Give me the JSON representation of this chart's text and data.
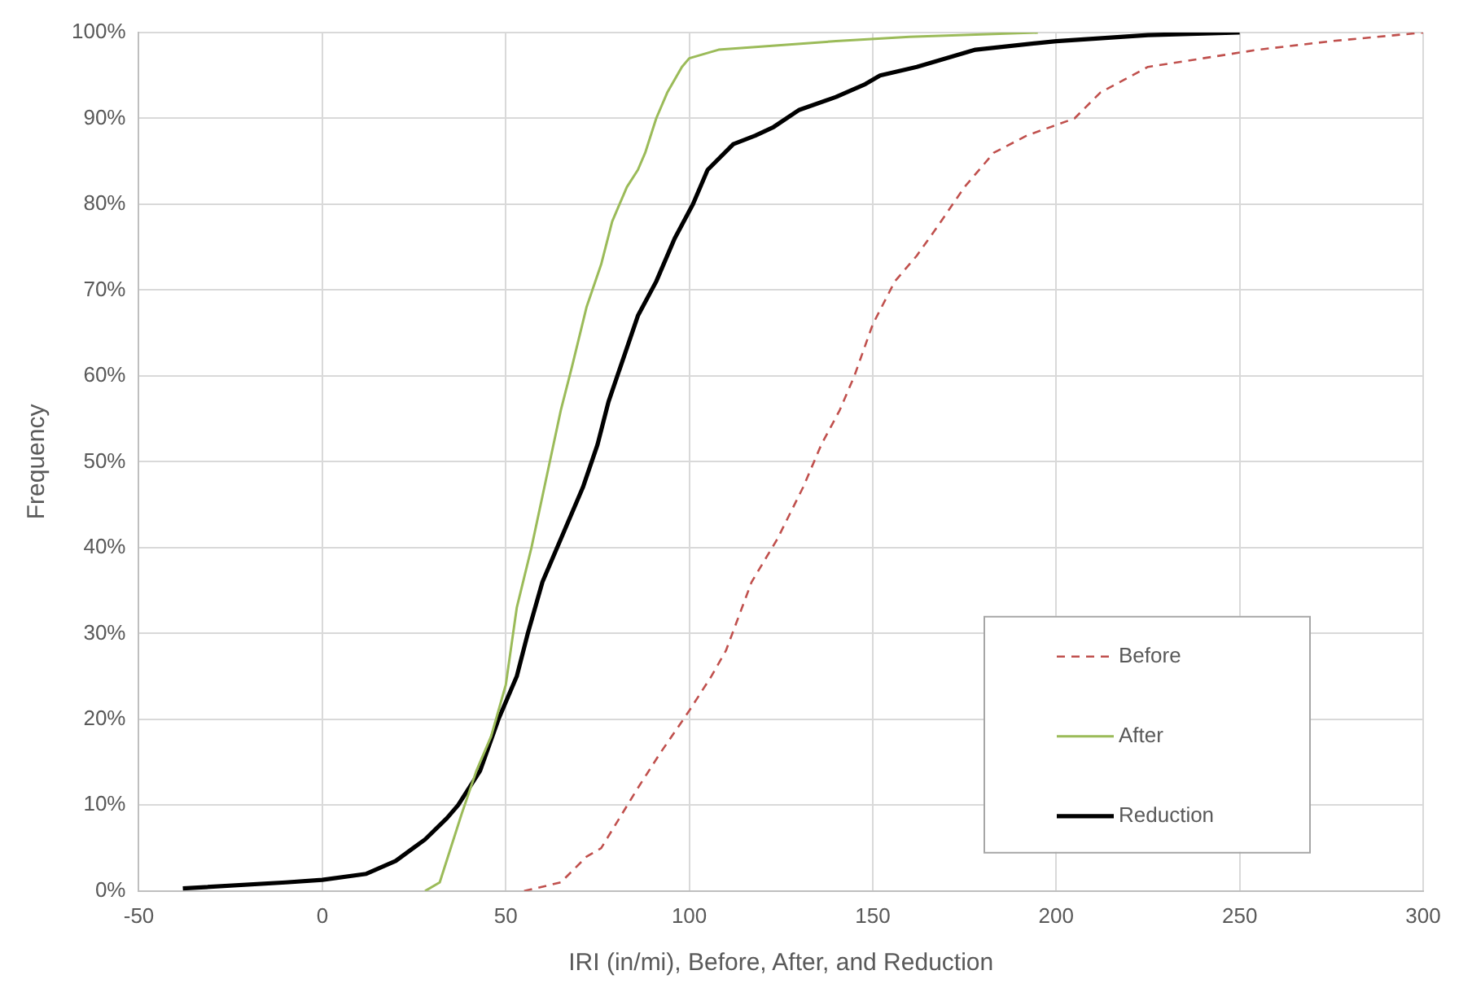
{
  "chart_data": {
    "type": "line",
    "xlabel": "IRI (in/mi), Before, After, and Reduction",
    "ylabel": "Frequency",
    "xlim": [
      -50,
      300
    ],
    "xticks": [
      -50,
      0,
      50,
      100,
      150,
      200,
      250,
      300
    ],
    "ylim": [
      0,
      100
    ],
    "yticks": [
      {
        "value": 0,
        "label": "0%"
      },
      {
        "value": 10,
        "label": "10%"
      },
      {
        "value": 20,
        "label": "20%"
      },
      {
        "value": 30,
        "label": "30%"
      },
      {
        "value": 40,
        "label": "40%"
      },
      {
        "value": 50,
        "label": "50%"
      },
      {
        "value": 60,
        "label": "60%"
      },
      {
        "value": 70,
        "label": "70%"
      },
      {
        "value": 80,
        "label": "80%"
      },
      {
        "value": 90,
        "label": "90%"
      },
      {
        "value": 100,
        "label": "100%"
      }
    ],
    "grid": true,
    "legend": "bottom right",
    "marker": "none",
    "series": [
      {
        "name": "Before",
        "color": "#c0504d",
        "line_style": "dashed",
        "x": [
          55,
          65,
          72,
          76,
          86,
          92,
          100,
          106,
          110,
          117,
          124,
          131,
          136,
          141,
          145,
          150,
          156,
          162,
          167,
          175,
          183,
          192,
          205,
          212,
          225,
          240,
          255,
          275,
          300
        ],
        "values": [
          0,
          1,
          4,
          5,
          12,
          16,
          21,
          25,
          28,
          36,
          41,
          47,
          52,
          56,
          60,
          66,
          71,
          74,
          77,
          82,
          86,
          88,
          90,
          93,
          96,
          97,
          98,
          99,
          100
        ]
      },
      {
        "name": "After",
        "color": "#9bbb59",
        "line_style": "solid",
        "x": [
          28,
          32,
          35,
          38,
          42,
          46,
          50,
          53,
          57,
          61,
          65,
          68,
          72,
          76,
          79,
          83,
          86,
          88,
          91,
          94,
          98,
          100,
          108,
          140,
          160,
          195
        ],
        "values": [
          0,
          1,
          5,
          9,
          14,
          18,
          24,
          33,
          40,
          48,
          56,
          61,
          68,
          73,
          78,
          82,
          84,
          86,
          90,
          93,
          96,
          97,
          98,
          99,
          99.5,
          100
        ]
      },
      {
        "name": "Reduction",
        "color": "#000000",
        "line_style": "solid",
        "x": [
          -38,
          -10,
          0,
          12,
          20,
          28,
          34,
          37,
          43,
          48,
          53,
          56,
          60,
          66,
          71,
          75,
          78,
          82,
          86,
          91,
          96,
          101,
          105,
          112,
          118,
          123,
          130,
          140,
          148,
          152,
          162,
          178,
          200,
          225,
          250
        ],
        "values": [
          0.3,
          1,
          1.3,
          2,
          3.5,
          6,
          8.5,
          10,
          14,
          20,
          25,
          30,
          36,
          42,
          47,
          52,
          57,
          62,
          67,
          71,
          76,
          80,
          84,
          87,
          88,
          89,
          91,
          92.5,
          94,
          95,
          96,
          98,
          99,
          99.7,
          100
        ]
      }
    ]
  }
}
